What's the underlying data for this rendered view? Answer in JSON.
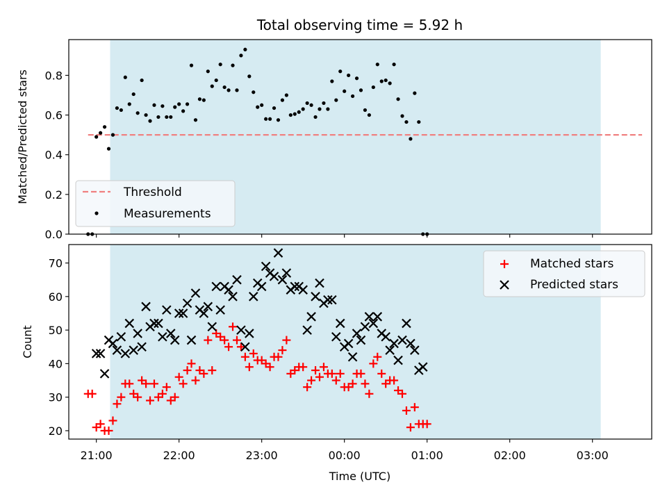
{
  "chart_data": [
    {
      "type": "scatter",
      "title": "Total observing time = 5.92 h",
      "xlabel": "",
      "ylabel": "Matched/Predicted stars",
      "xlim": [
        "20:40",
        "03:43"
      ],
      "ylim": [
        0,
        0.98
      ],
      "yticks": [
        "0.0",
        "0.2",
        "0.4",
        "0.6",
        "0.8"
      ],
      "x_tick_labels_shown": false,
      "shaded_interval": [
        "21:10",
        "03:06"
      ],
      "legend": {
        "position": "lower-left",
        "entries": [
          "Threshold",
          "Measurements"
        ]
      },
      "threshold": {
        "name": "Threshold",
        "y": 0.5,
        "x_range": [
          "20:54",
          "03:36"
        ],
        "color": "#f08080"
      },
      "series": [
        {
          "name": "Measurements",
          "color": "#000000",
          "marker": "dot",
          "points": [
            [
              "20:54",
              0.0
            ],
            [
              "20:57",
              0.0
            ],
            [
              "21:00",
              0.49
            ],
            [
              "21:03",
              0.51
            ],
            [
              "21:06",
              0.54
            ],
            [
              "21:09",
              0.43
            ],
            [
              "21:12",
              0.5
            ],
            [
              "21:15",
              0.635
            ],
            [
              "21:18",
              0.625
            ],
            [
              "21:21",
              0.79
            ],
            [
              "21:24",
              0.655
            ],
            [
              "21:27",
              0.705
            ],
            [
              "21:30",
              0.61
            ],
            [
              "21:33",
              0.775
            ],
            [
              "21:36",
              0.6
            ],
            [
              "21:39",
              0.57
            ],
            [
              "21:42",
              0.65
            ],
            [
              "21:45",
              0.59
            ],
            [
              "21:48",
              0.645
            ],
            [
              "21:51",
              0.59
            ],
            [
              "21:54",
              0.59
            ],
            [
              "21:57",
              0.64
            ],
            [
              "22:00",
              0.655
            ],
            [
              "22:03",
              0.62
            ],
            [
              "22:06",
              0.655
            ],
            [
              "22:09",
              0.85
            ],
            [
              "22:12",
              0.575
            ],
            [
              "22:15",
              0.68
            ],
            [
              "22:18",
              0.675
            ],
            [
              "22:21",
              0.82
            ],
            [
              "22:24",
              0.745
            ],
            [
              "22:27",
              0.775
            ],
            [
              "22:30",
              0.855
            ],
            [
              "22:33",
              0.74
            ],
            [
              "22:36",
              0.725
            ],
            [
              "22:39",
              0.85
            ],
            [
              "22:42",
              0.725
            ],
            [
              "22:45",
              0.9
            ],
            [
              "22:48",
              0.93
            ],
            [
              "22:51",
              0.795
            ],
            [
              "22:54",
              0.715
            ],
            [
              "22:57",
              0.64
            ],
            [
              "23:00",
              0.65
            ],
            [
              "23:03",
              0.58
            ],
            [
              "23:06",
              0.58
            ],
            [
              "23:09",
              0.635
            ],
            [
              "23:12",
              0.575
            ],
            [
              "23:15",
              0.675
            ],
            [
              "23:18",
              0.7
            ],
            [
              "23:21",
              0.6
            ],
            [
              "23:24",
              0.605
            ],
            [
              "23:27",
              0.615
            ],
            [
              "23:30",
              0.63
            ],
            [
              "23:33",
              0.66
            ],
            [
              "23:36",
              0.65
            ],
            [
              "23:39",
              0.59
            ],
            [
              "23:42",
              0.63
            ],
            [
              "23:45",
              0.66
            ],
            [
              "23:48",
              0.63
            ],
            [
              "23:51",
              0.77
            ],
            [
              "23:54",
              0.675
            ],
            [
              "23:57",
              0.82
            ],
            [
              "00:00",
              0.72
            ],
            [
              "00:03",
              0.8
            ],
            [
              "00:06",
              0.695
            ],
            [
              "00:09",
              0.785
            ],
            [
              "00:12",
              0.725
            ],
            [
              "00:15",
              0.625
            ],
            [
              "00:18",
              0.6
            ],
            [
              "00:21",
              0.74
            ],
            [
              "00:24",
              0.855
            ],
            [
              "00:27",
              0.77
            ],
            [
              "00:30",
              0.775
            ],
            [
              "00:33",
              0.76
            ],
            [
              "00:36",
              0.855
            ],
            [
              "00:39",
              0.68
            ],
            [
              "00:42",
              0.595
            ],
            [
              "00:45",
              0.565
            ],
            [
              "00:48",
              0.48
            ],
            [
              "00:51",
              0.71
            ],
            [
              "00:54",
              0.565
            ],
            [
              "00:57",
              0.0
            ],
            [
              "01:00",
              0.0
            ]
          ]
        }
      ]
    },
    {
      "type": "scatter",
      "title": "",
      "xlabel": "Time (UTC)",
      "ylabel": "Count",
      "xlim": [
        "20:40",
        "03:43"
      ],
      "ylim": [
        17.5,
        75.5
      ],
      "yticks": [
        "20",
        "30",
        "40",
        "50",
        "60",
        "70"
      ],
      "xticks": [
        "21:00",
        "22:00",
        "23:00",
        "00:00",
        "01:00",
        "02:00",
        "03:00"
      ],
      "shaded_interval": [
        "21:10",
        "03:06"
      ],
      "legend": {
        "position": "upper-right",
        "entries": [
          "Matched stars",
          "Predicted stars"
        ]
      },
      "series": [
        {
          "name": "Matched stars",
          "color": "#ff0000",
          "marker": "plus",
          "values": [
            31,
            31,
            21,
            22,
            20,
            20,
            23,
            28,
            30,
            34,
            34,
            31,
            30,
            35,
            34,
            29,
            34,
            30,
            31,
            33,
            29,
            30,
            36,
            34,
            38,
            40,
            35,
            38,
            37,
            47,
            38,
            49,
            48,
            47,
            45,
            51,
            47,
            45,
            42,
            39,
            43,
            41,
            41,
            40,
            39,
            42,
            42,
            44,
            47,
            37,
            38,
            39,
            39,
            33,
            35,
            38,
            36,
            39,
            37,
            37,
            35,
            37,
            33,
            33,
            34,
            37,
            37,
            34,
            31,
            40,
            42,
            37,
            34,
            35,
            35,
            32,
            31,
            26,
            21,
            27,
            22,
            22,
            22
          ]
        },
        {
          "name": "Predicted stars",
          "color": "#000000",
          "marker": "x",
          "values": [
            null,
            null,
            43,
            43,
            37,
            47,
            46,
            44,
            48,
            43,
            52,
            44,
            49,
            45,
            57,
            51,
            52,
            52,
            48,
            56,
            49,
            47,
            55,
            55,
            58,
            47,
            61,
            56,
            55,
            57,
            51,
            63,
            56,
            63,
            62,
            60,
            65,
            50,
            45,
            49,
            60,
            64,
            63,
            69,
            67,
            66,
            73,
            65,
            67,
            62,
            63,
            63,
            62,
            50,
            54,
            60,
            64,
            58,
            59,
            59,
            48,
            52,
            45,
            46,
            42,
            49,
            47,
            51,
            54,
            52,
            54,
            49,
            48,
            44,
            46,
            41,
            47,
            52,
            46,
            44,
            38,
            39,
            null
          ]
        }
      ],
      "time_start": "20:54",
      "time_step_minutes": 3
    }
  ]
}
